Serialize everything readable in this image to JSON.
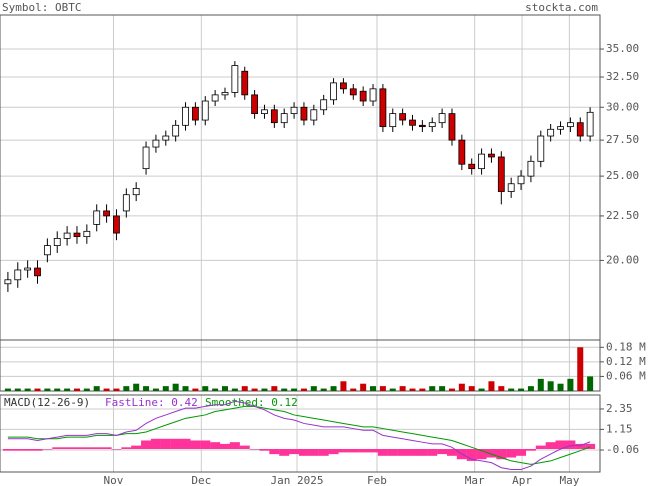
{
  "chart_data": {
    "type": "candlestick",
    "title": "Symbol: OBTC",
    "source": "stockta.com",
    "log_scale": true,
    "grid": true,
    "up_color": "#ffffff",
    "down_color": "#cc0000",
    "ylim": [
      16.2,
      38.3
    ],
    "yticks": [
      {
        "value": 35,
        "label": "35.00"
      },
      {
        "value": 32.5,
        "label": "32.50"
      },
      {
        "value": 30,
        "label": "30.00"
      },
      {
        "value": 27.5,
        "label": "27.50"
      },
      {
        "value": 25,
        "label": "25.00"
      },
      {
        "value": 22.5,
        "label": "22.50"
      },
      {
        "value": 20,
        "label": "20.00"
      }
    ],
    "xlim": [
      -0.8,
      60
    ],
    "xticks": [
      {
        "value": 10.7,
        "label": "Nov"
      },
      {
        "value": 19.6,
        "label": "Dec"
      },
      {
        "value": 29.3,
        "label": "Jan 2025"
      },
      {
        "value": 37.4,
        "label": "Feb"
      },
      {
        "value": 47.3,
        "label": "Mar"
      },
      {
        "value": 52.1,
        "label": "Apr"
      },
      {
        "value": 56.9,
        "label": "May"
      }
    ],
    "open": [
      18.8,
      19.0,
      19.5,
      19.6,
      20.3,
      20.8,
      21.2,
      21.5,
      21.3,
      22.0,
      22.8,
      22.5,
      22.8,
      23.8,
      25.5,
      27.0,
      27.5,
      27.8,
      28.6,
      30.0,
      29.0,
      30.5,
      31.0,
      31.2,
      33.0,
      31.0,
      29.5,
      29.8,
      28.8,
      29.5,
      30.0,
      29.0,
      29.8,
      30.6,
      32.0,
      31.5,
      31.3,
      30.5,
      31.5,
      28.5,
      29.5,
      29.0,
      28.6,
      28.5,
      28.8,
      29.5,
      27.5,
      25.8,
      25.5,
      26.5,
      26.3,
      24.0,
      24.5,
      25.0,
      26.0,
      27.8,
      28.3,
      28.5,
      28.8,
      27.8
    ],
    "high": [
      19.4,
      19.9,
      20.0,
      20.0,
      21.2,
      21.6,
      21.9,
      21.9,
      22.0,
      23.2,
      23.2,
      22.9,
      24.2,
      24.6,
      27.4,
      27.9,
      28.2,
      29.0,
      30.4,
      30.4,
      30.9,
      31.4,
      31.6,
      33.9,
      33.4,
      31.4,
      30.2,
      30.2,
      29.9,
      30.4,
      30.4,
      30.2,
      31.0,
      32.4,
      32.4,
      31.9,
      31.7,
      31.9,
      31.9,
      29.9,
      29.9,
      29.4,
      29.0,
      29.2,
      29.9,
      29.9,
      27.9,
      26.2,
      26.9,
      26.9,
      26.7,
      24.9,
      25.4,
      26.4,
      28.2,
      28.7,
      28.9,
      29.2,
      29.2,
      30.0
    ],
    "low": [
      18.4,
      18.6,
      19.1,
      18.8,
      19.9,
      20.4,
      20.8,
      20.9,
      20.9,
      21.6,
      22.1,
      21.1,
      22.4,
      23.4,
      25.1,
      26.6,
      27.1,
      27.4,
      28.2,
      28.6,
      28.6,
      30.1,
      30.6,
      30.8,
      30.6,
      29.1,
      29.1,
      28.4,
      28.4,
      29.1,
      28.6,
      28.6,
      29.4,
      30.2,
      31.1,
      30.6,
      30.1,
      30.1,
      28.1,
      28.1,
      28.6,
      28.2,
      28.1,
      28.1,
      28.4,
      27.1,
      25.4,
      25.1,
      25.1,
      25.9,
      23.2,
      23.6,
      24.1,
      24.6,
      25.6,
      27.4,
      27.9,
      28.1,
      27.4,
      27.4
    ],
    "close": [
      19.0,
      19.5,
      19.6,
      19.2,
      20.8,
      21.2,
      21.5,
      21.3,
      21.6,
      22.8,
      22.5,
      21.5,
      23.8,
      24.2,
      27.0,
      27.5,
      27.8,
      28.6,
      30.0,
      29.0,
      30.5,
      31.0,
      31.2,
      33.5,
      31.0,
      29.5,
      29.8,
      28.8,
      29.5,
      30.0,
      29.0,
      29.8,
      30.6,
      32.0,
      31.5,
      31.0,
      30.5,
      31.5,
      28.5,
      29.5,
      29.0,
      28.6,
      28.5,
      28.8,
      29.5,
      27.5,
      25.8,
      25.5,
      26.5,
      26.3,
      24.0,
      24.5,
      25.0,
      26.0,
      27.8,
      28.3,
      28.5,
      28.8,
      27.8,
      29.6
    ],
    "volume": {
      "up_color": "#006600",
      "down_color": "#cc0000",
      "ylim": [
        0,
        0.21
      ],
      "yticks": [
        {
          "value": 0.18,
          "label": "0.18 M"
        },
        {
          "value": 0.12,
          "label": "0.12 M"
        },
        {
          "value": 0.06,
          "label": "0.06 M"
        }
      ],
      "values": [
        0.01,
        0.01,
        0.01,
        0.01,
        0.01,
        0.01,
        0.01,
        0.01,
        0.01,
        0.02,
        0.01,
        0.01,
        0.02,
        0.03,
        0.02,
        0.01,
        0.02,
        0.03,
        0.02,
        0.01,
        0.02,
        0.01,
        0.02,
        0.01,
        0.02,
        0.01,
        0.01,
        0.02,
        0.01,
        0.01,
        0.01,
        0.02,
        0.01,
        0.02,
        0.04,
        0.01,
        0.03,
        0.02,
        0.02,
        0.01,
        0.02,
        0.01,
        0.01,
        0.02,
        0.02,
        0.01,
        0.03,
        0.02,
        0.01,
        0.04,
        0.02,
        0.01,
        0.01,
        0.02,
        0.05,
        0.04,
        0.03,
        0.05,
        0.18,
        0.06
      ]
    },
    "macd": {
      "title": "MACD(12-26-9)",
      "fast_label": "FastLine: 0.42",
      "smooth_label": "Smoothed: 0.12",
      "ylim": [
        -1.35,
        3.17
      ],
      "yticks": [
        2.35,
        1.15,
        -0.06
      ],
      "fast": {
        "color": "#9933cc",
        "values": [
          0.6,
          0.6,
          0.6,
          0.5,
          0.6,
          0.7,
          0.8,
          0.8,
          0.8,
          0.9,
          0.9,
          0.8,
          1.0,
          1.1,
          1.5,
          1.8,
          2.0,
          2.2,
          2.4,
          2.4,
          2.5,
          2.6,
          2.6,
          2.8,
          2.7,
          2.5,
          2.3,
          2.0,
          1.8,
          1.7,
          1.5,
          1.4,
          1.3,
          1.3,
          1.3,
          1.2,
          1.1,
          1.1,
          0.8,
          0.7,
          0.6,
          0.5,
          0.4,
          0.3,
          0.3,
          0.1,
          -0.3,
          -0.6,
          -0.7,
          -0.8,
          -1.1,
          -1.2,
          -1.2,
          -1.0,
          -0.6,
          -0.3,
          0.0,
          0.2,
          0.2,
          0.42
        ]
      },
      "smooth": {
        "color": "#009900",
        "values": [
          0.7,
          0.7,
          0.7,
          0.6,
          0.6,
          0.6,
          0.7,
          0.7,
          0.7,
          0.8,
          0.8,
          0.8,
          0.9,
          0.9,
          1.0,
          1.2,
          1.4,
          1.6,
          1.8,
          1.9,
          2.0,
          2.2,
          2.3,
          2.4,
          2.5,
          2.5,
          2.4,
          2.3,
          2.2,
          2.0,
          1.9,
          1.8,
          1.7,
          1.6,
          1.5,
          1.4,
          1.3,
          1.3,
          1.2,
          1.1,
          1.0,
          0.9,
          0.8,
          0.7,
          0.6,
          0.5,
          0.3,
          0.1,
          -0.1,
          -0.3,
          -0.5,
          -0.7,
          -0.8,
          -0.9,
          -0.8,
          -0.7,
          -0.5,
          -0.3,
          -0.1,
          0.12
        ]
      },
      "histogram": {
        "color": "#ff3399",
        "values": [
          -0.1,
          -0.1,
          -0.1,
          -0.1,
          0,
          0.1,
          0.1,
          0.1,
          0.1,
          0.1,
          0.1,
          0,
          0.1,
          0.2,
          0.5,
          0.6,
          0.6,
          0.6,
          0.6,
          0.5,
          0.5,
          0.4,
          0.3,
          0.4,
          0.2,
          0,
          -0.1,
          -0.3,
          -0.4,
          -0.3,
          -0.4,
          -0.4,
          -0.4,
          -0.3,
          -0.2,
          -0.2,
          -0.2,
          -0.2,
          -0.4,
          -0.4,
          -0.4,
          -0.4,
          -0.4,
          -0.4,
          -0.3,
          -0.4,
          -0.6,
          -0.7,
          -0.6,
          -0.5,
          -0.6,
          -0.5,
          -0.4,
          -0.1,
          0.2,
          0.4,
          0.5,
          0.5,
          0.3,
          0.3
        ]
      }
    }
  }
}
